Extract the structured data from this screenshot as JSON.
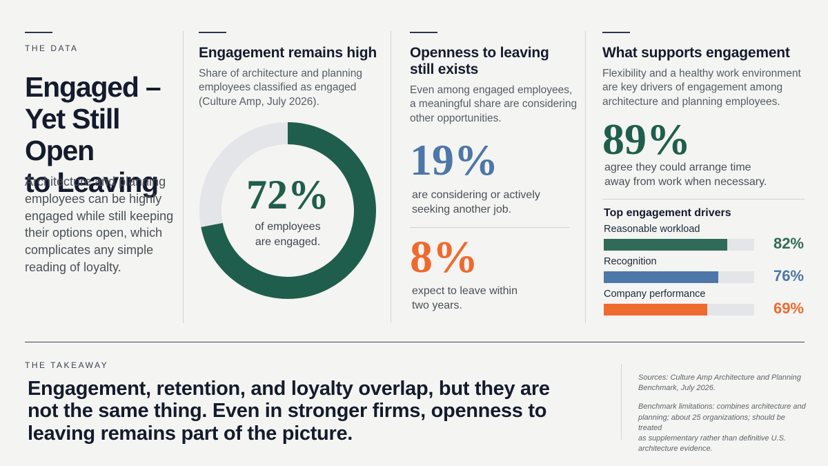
{
  "left": {
    "eyebrow": "THE DATA",
    "title_lines": [
      "Engaged –",
      "Yet Still Open",
      "to Leaving"
    ],
    "body_lines": [
      "Architecture and planning",
      "employees can be highly",
      "engaged while still keeping",
      "their options open, which",
      "complicates any simple",
      "reading of loyalty."
    ]
  },
  "col1": {
    "title": "Engagement remains high",
    "desc_lines": [
      "Share of architecture and planning",
      "employees classified as engaged",
      "(Culture Amp, July 2026)."
    ],
    "donut_value": "72%",
    "donut_caption_lines": [
      "of employees",
      "are engaged."
    ]
  },
  "col2": {
    "title_lines": [
      "Openness to leaving",
      "still exists"
    ],
    "desc_lines": [
      "Even among engaged employees,",
      "a meaningful share are considering",
      "other opportunities."
    ],
    "stat1_value": "19%",
    "stat1_caption_lines": [
      "are considering or actively",
      "seeking another job."
    ],
    "stat2_value": "8%",
    "stat2_caption_lines": [
      "expect to leave within",
      "two years."
    ]
  },
  "col3": {
    "title": "What supports engagement",
    "desc_lines": [
      "Flexibility and a healthy work environment",
      "are key drivers of engagement among",
      "architecture and planning employees."
    ],
    "stat_value": "89%",
    "stat_caption_lines": [
      "agree they could arrange time",
      "away from work when necessary."
    ],
    "drivers_title": "Top engagement drivers"
  },
  "chart_data": [
    {
      "type": "pie",
      "categories": [
        "Engaged",
        "Not engaged"
      ],
      "values": [
        72,
        28
      ],
      "colors": [
        "#1f5e4c",
        "#e3e5e8"
      ]
    },
    {
      "type": "bar",
      "title": "Top engagement drivers",
      "categories": [
        "Reasonable workload",
        "Recognition",
        "Company performance"
      ],
      "values": [
        82,
        76,
        69
      ],
      "value_labels": [
        "82%",
        "76%",
        "69%"
      ],
      "colors": [
        "#2f6b58",
        "#4d77a8",
        "#ee6a2e"
      ],
      "ylim": [
        0,
        100
      ]
    }
  ],
  "takeaway": {
    "eyebrow": "THE TAKEAWAY",
    "text_lines": [
      "Engagement, retention, and loyalty overlap, but they are",
      "not the same thing. Even in stronger firms, openness to",
      "leaving remains part of the picture."
    ]
  },
  "sources": {
    "label": "Sources:",
    "source_lines": [
      "Culture Amp Architecture and Planning",
      "Benchmark, July 2026."
    ],
    "limitations_lines": [
      "Benchmark limitations: combines architecture and",
      "planning; about 25 organizations; should be treated",
      "as supplementary rather than definitive U.S.",
      "architecture evidence."
    ]
  },
  "colors": {
    "green": "#1f5e4c",
    "blue": "#4d77a8",
    "orange": "#ee6a2e",
    "navy": "#141b2d",
    "background": "#f4f4f2"
  }
}
